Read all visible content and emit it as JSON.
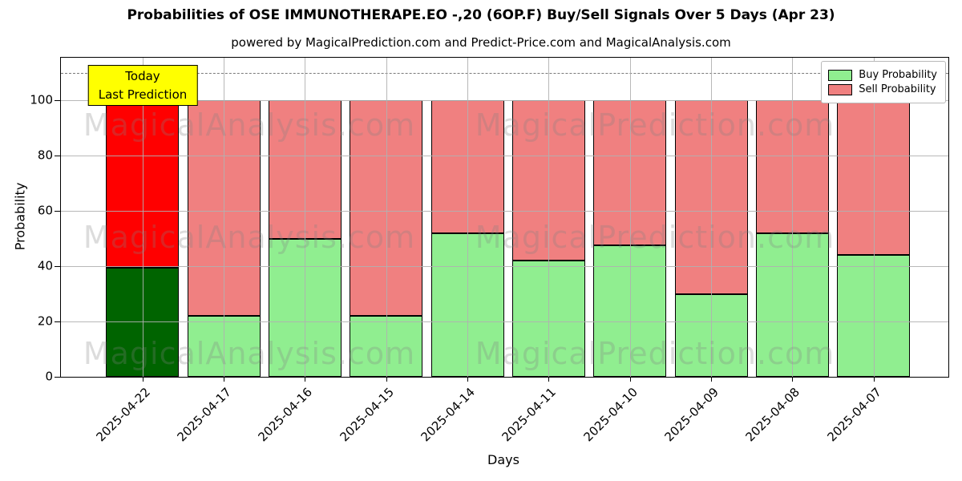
{
  "title": "Probabilities of OSE IMMUNOTHERAPE.EO -,20 (6OP.F) Buy/Sell Signals Over 5 Days (Apr 23)",
  "subtitle": "powered by MagicalPrediction.com and Predict-Price.com and MagicalAnalysis.com",
  "chart_data": {
    "type": "bar",
    "stacked": true,
    "categories": [
      "2025-04-22",
      "2025-04-17",
      "2025-04-16",
      "2025-04-15",
      "2025-04-14",
      "2025-04-11",
      "2025-04-10",
      "2025-04-09",
      "2025-04-08",
      "2025-04-07"
    ],
    "series": [
      {
        "name": "Buy Probability",
        "values": [
          39.5,
          22,
          50,
          22,
          52,
          42,
          47.5,
          30,
          52,
          44
        ]
      },
      {
        "name": "Sell Probability",
        "values": [
          60.5,
          78,
          50,
          78,
          48,
          58,
          52.5,
          70,
          48,
          56
        ]
      }
    ],
    "xlabel": "Days",
    "ylabel": "Probability",
    "yticks": [
      0,
      20,
      40,
      60,
      80,
      100
    ],
    "ylim": [
      0,
      115.4
    ],
    "dashed_line_y": 110,
    "grid": true,
    "legend_position": "upper right"
  },
  "colors": {
    "buy": "#90EE90",
    "sell": "#F08080",
    "today_buy": "#006400",
    "today_sell": "#FF0000",
    "bar_edge": "#000000",
    "annotation_bg": "#FFFF00",
    "grid": "#b0b0b0",
    "dashed_line": "#7a7a7a"
  },
  "legend": {
    "items": [
      {
        "label": "Buy Probability",
        "color": "#90EE90"
      },
      {
        "label": "Sell Probability",
        "color": "#F08080"
      }
    ]
  },
  "annotation": {
    "line1": "Today",
    "line2": "Last Prediction"
  },
  "watermarks": {
    "left_text": "MagicalAnalysis.com",
    "right_text": "MagicalPrediction.com"
  }
}
